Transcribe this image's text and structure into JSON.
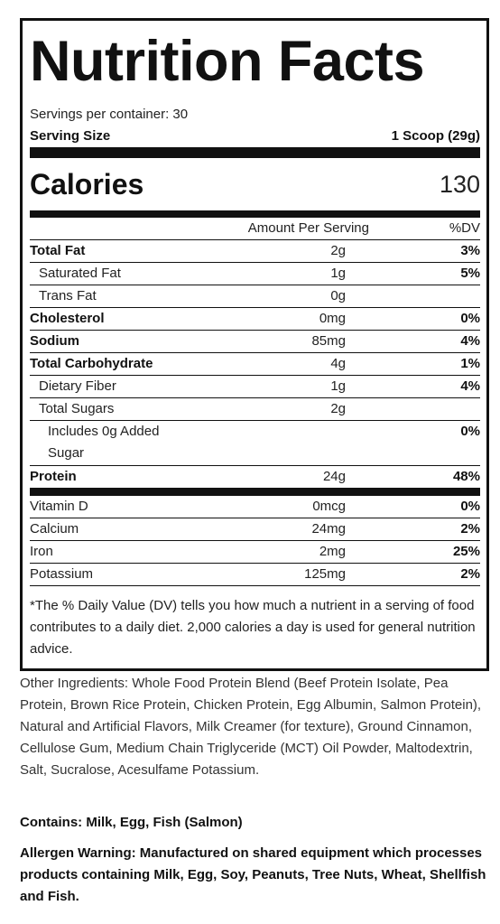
{
  "header": {
    "title": "Nutrition Facts",
    "servings": "Servings per container: 30",
    "serving_size_label": "Serving Size",
    "serving_size": "1 Scoop (29g)"
  },
  "calories": {
    "label": "Calories",
    "value": "130"
  },
  "table": {
    "headers": [
      "Amount Per Serving",
      "%DV"
    ],
    "rows": [
      {
        "name": "Total Fat",
        "amount": "2g",
        "dv": "3%"
      },
      {
        "name": "Saturated Fat",
        "amount": "1g",
        "dv": "5%"
      },
      {
        "name": "Trans Fat",
        "amount": "0g"
      },
      {
        "name": "Cholesterol",
        "amount": "0mg",
        "dv": "0%"
      },
      {
        "name": "Sodium",
        "amount": "85mg",
        "dv": "4%"
      },
      {
        "name": "Total Carbohydrate",
        "amount": "4g",
        "dv": "1%"
      },
      {
        "name": "Dietary Fiber",
        "amount": "1g",
        "dv": "4%"
      },
      {
        "name": "Total Sugars",
        "amount": "2g"
      },
      {
        "name": "Includes 0g Added Sugar",
        "dv": "0%"
      },
      {
        "name": "Protein",
        "amount": "24g",
        "dv": "48%"
      }
    ],
    "micronutrients": [
      {
        "name": "Vitamin D",
        "amount": "0mcg",
        "dv": "0%"
      },
      {
        "name": "Calcium",
        "amount": "24mg",
        "dv": "2%"
      },
      {
        "name": "Iron",
        "amount": "2mg",
        "dv": "25%"
      },
      {
        "name": "Potassium",
        "amount": "125mg",
        "dv": "2%"
      }
    ]
  },
  "footnote": "*The % Daily Value (DV) tells you how much a nutrient in a serving of food contributes to a daily diet. 2,000 calories a day is used for general nutrition advice.",
  "other_ingredients": "Other Ingredients: Whole Food Protein Blend (Beef Protein Isolate, Pea Protein, Brown Rice Protein, Chicken Protein, Egg Albumin, Salmon Protein), Natural and Artificial Flavors, Milk Creamer (for texture), Ground Cinnamon, Cellulose Gum, Medium Chain Triglyceride (MCT) Oil Powder, Maltodextrin, Salt, Sucralose, Acesulfame Potassium.",
  "contains": "Contains: Milk, Egg, Fish (Salmon)",
  "allergen_warning": "Allergen Warning: Manufactured on shared equipment which processes products containing Milk, Egg, Soy, Peanuts, Tree Nuts, Wheat, Shellfish and Fish."
}
